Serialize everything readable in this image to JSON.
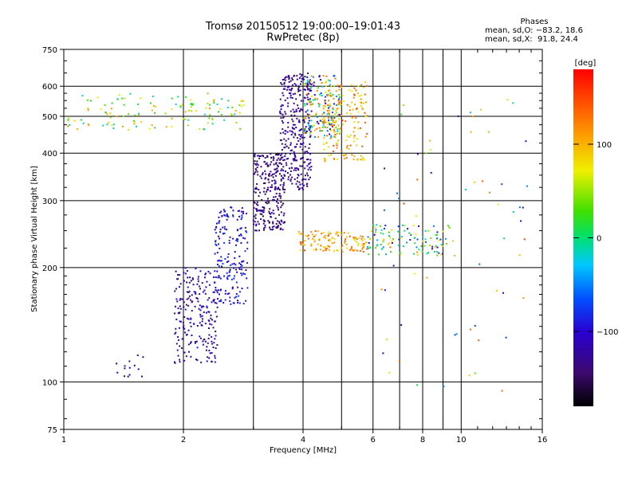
{
  "header": {
    "title_line1": "Tromsø 20150512 19:00:00–19:01:43",
    "title_line2": "RwPretec (8p)",
    "phases_heading": "Phases",
    "phase_o": "mean, sd,O: −83.2, 18.6",
    "phase_x": "mean, sd,X:  91.8, 24.4"
  },
  "colorbar": {
    "unit_label": "[deg]",
    "tick_labels": [
      "100",
      "0",
      "−100"
    ],
    "tick_values": [
      100,
      0,
      -100
    ],
    "range": [
      -180,
      180
    ]
  },
  "chart_data": {
    "type": "scatter",
    "title": "Tromsø 20150512 19:00:00–19:01:43",
    "subtitle": "RwPretec (8p)",
    "xlabel": "Frequency [MHz]",
    "ylabel": "Stationary phase Virtual Height [km]",
    "xscale": "log",
    "yscale": "log",
    "xlim": [
      1,
      16
    ],
    "ylim": [
      75,
      750
    ],
    "x_ticks": [
      1,
      2,
      4,
      6,
      8,
      10,
      16
    ],
    "x_tick_labels": [
      "1",
      "2",
      "4",
      "6",
      "8",
      "10",
      "16"
    ],
    "x_minor_ticks": [
      3,
      5,
      7,
      9
    ],
    "y_ticks": [
      75,
      100,
      200,
      300,
      400,
      500,
      600,
      750
    ],
    "y_tick_labels": [
      "75",
      "100",
      "200",
      "300",
      "400",
      "500",
      "600",
      "750"
    ],
    "grid": true,
    "color_value": "phase [deg]",
    "trace_groups": [
      {
        "x_range": [
          1.02,
          2.85
        ],
        "y_range": [
          460,
          575
        ],
        "phase_range": [
          -30,
          120
        ],
        "density": 130
      },
      {
        "x_range": [
          1.35,
          1.6
        ],
        "y_range": [
          102,
          120
        ],
        "phase_range": [
          -140,
          -100
        ],
        "density": 14
      },
      {
        "x_range": [
          1.9,
          2.45
        ],
        "y_range": [
          112,
          200
        ],
        "phase_range": [
          -145,
          -90
        ],
        "density": 220
      },
      {
        "x_range": [
          2.4,
          2.9
        ],
        "y_range": [
          160,
          290
        ],
        "phase_range": [
          -120,
          -70
        ],
        "density": 180
      },
      {
        "x_range": [
          3.0,
          3.6
        ],
        "y_range": [
          250,
          400
        ],
        "phase_range": [
          -160,
          -110
        ],
        "density": 260
      },
      {
        "x_range": [
          3.5,
          4.2
        ],
        "y_range": [
          320,
          650
        ],
        "phase_range": [
          -150,
          -100
        ],
        "density": 320
      },
      {
        "x_range": [
          4.0,
          5.0
        ],
        "y_range": [
          440,
          640
        ],
        "phase_range": [
          -120,
          150
        ],
        "density": 180
      },
      {
        "x_range": [
          4.5,
          5.8
        ],
        "y_range": [
          380,
          620
        ],
        "phase_range": [
          60,
          150
        ],
        "density": 160
      },
      {
        "x_range": [
          3.9,
          5.8
        ],
        "y_range": [
          220,
          250
        ],
        "phase_range": [
          60,
          150
        ],
        "density": 120
      },
      {
        "x_range": [
          5.8,
          9.4
        ],
        "y_range": [
          215,
          260
        ],
        "phase_range": [
          -110,
          90
        ],
        "density": 110
      },
      {
        "x_range": [
          6.2,
          14.8
        ],
        "y_range": [
          90,
          620
        ],
        "phase_range": [
          -120,
          160
        ],
        "density": 70
      }
    ]
  }
}
